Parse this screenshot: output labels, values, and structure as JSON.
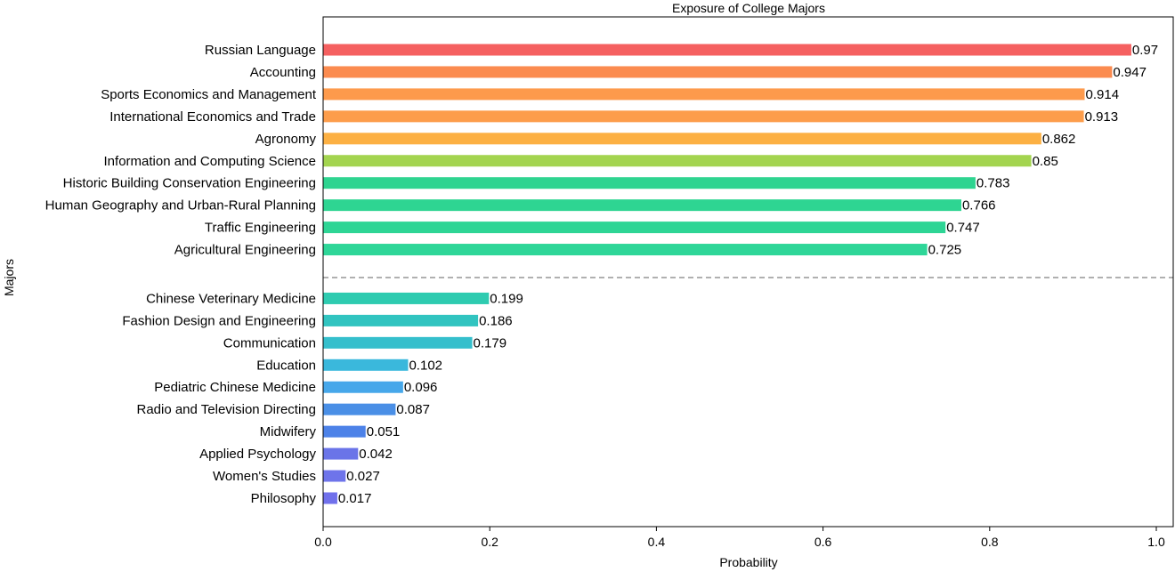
{
  "chart_data": {
    "type": "bar",
    "orientation": "horizontal",
    "title": "Exposure of College Majors",
    "xlabel": "Probability",
    "ylabel": "Majors",
    "xlim": [
      0,
      1.02
    ],
    "xticks": [
      "0.0",
      "0.2",
      "0.4",
      "0.6",
      "0.8",
      "1.0"
    ],
    "grid": false,
    "divider": "dashed line between the two groups",
    "groups": [
      {
        "bars": [
          {
            "category": "Russian Language",
            "value": 0.97,
            "label": "0.97",
            "color": "#f56060"
          },
          {
            "category": "Accounting",
            "value": 0.947,
            "label": "0.947",
            "color": "#fb8b4f"
          },
          {
            "category": "Sports Economics and Management",
            "value": 0.914,
            "label": "0.914",
            "color": "#fd9a4c"
          },
          {
            "category": "International Economics and Trade",
            "value": 0.913,
            "label": "0.913",
            "color": "#fd9d4b"
          },
          {
            "category": "Agronomy",
            "value": 0.862,
            "label": "0.862",
            "color": "#fcb043"
          },
          {
            "category": "Information and Computing Science",
            "value": 0.85,
            "label": "0.85",
            "color": "#a3d44f"
          },
          {
            "category": "Historic Building Conservation Engineering",
            "value": 0.783,
            "label": "0.783",
            "color": "#2ed490"
          },
          {
            "category": "Human Geography and Urban-Rural Planning",
            "value": 0.766,
            "label": "0.766",
            "color": "#2ed592"
          },
          {
            "category": "Traffic Engineering",
            "value": 0.747,
            "label": "0.747",
            "color": "#2ed595"
          },
          {
            "category": "Agricultural Engineering",
            "value": 0.725,
            "label": "0.725",
            "color": "#2ed698"
          }
        ]
      },
      {
        "bars": [
          {
            "category": "Chinese Veterinary Medicine",
            "value": 0.199,
            "label": "0.199",
            "color": "#2ecbb0"
          },
          {
            "category": "Fashion Design and Engineering",
            "value": 0.186,
            "label": "0.186",
            "color": "#31c4c0"
          },
          {
            "category": "Communication",
            "value": 0.179,
            "label": "0.179",
            "color": "#35bfcc"
          },
          {
            "category": "Education",
            "value": 0.102,
            "label": "0.102",
            "color": "#3ab8dc"
          },
          {
            "category": "Pediatric Chinese Medicine",
            "value": 0.096,
            "label": "0.096",
            "color": "#46a7ea"
          },
          {
            "category": "Radio and Television Directing",
            "value": 0.087,
            "label": "0.087",
            "color": "#4a8fe6"
          },
          {
            "category": "Midwifery",
            "value": 0.051,
            "label": "0.051",
            "color": "#4d82e8"
          },
          {
            "category": "Applied Psychology",
            "value": 0.042,
            "label": "0.042",
            "color": "#6a74e8"
          },
          {
            "category": "Women's Studies",
            "value": 0.027,
            "label": "0.027",
            "color": "#6e74ea"
          },
          {
            "category": "Philosophy",
            "value": 0.017,
            "label": "0.017",
            "color": "#7070eb"
          }
        ]
      }
    ]
  }
}
